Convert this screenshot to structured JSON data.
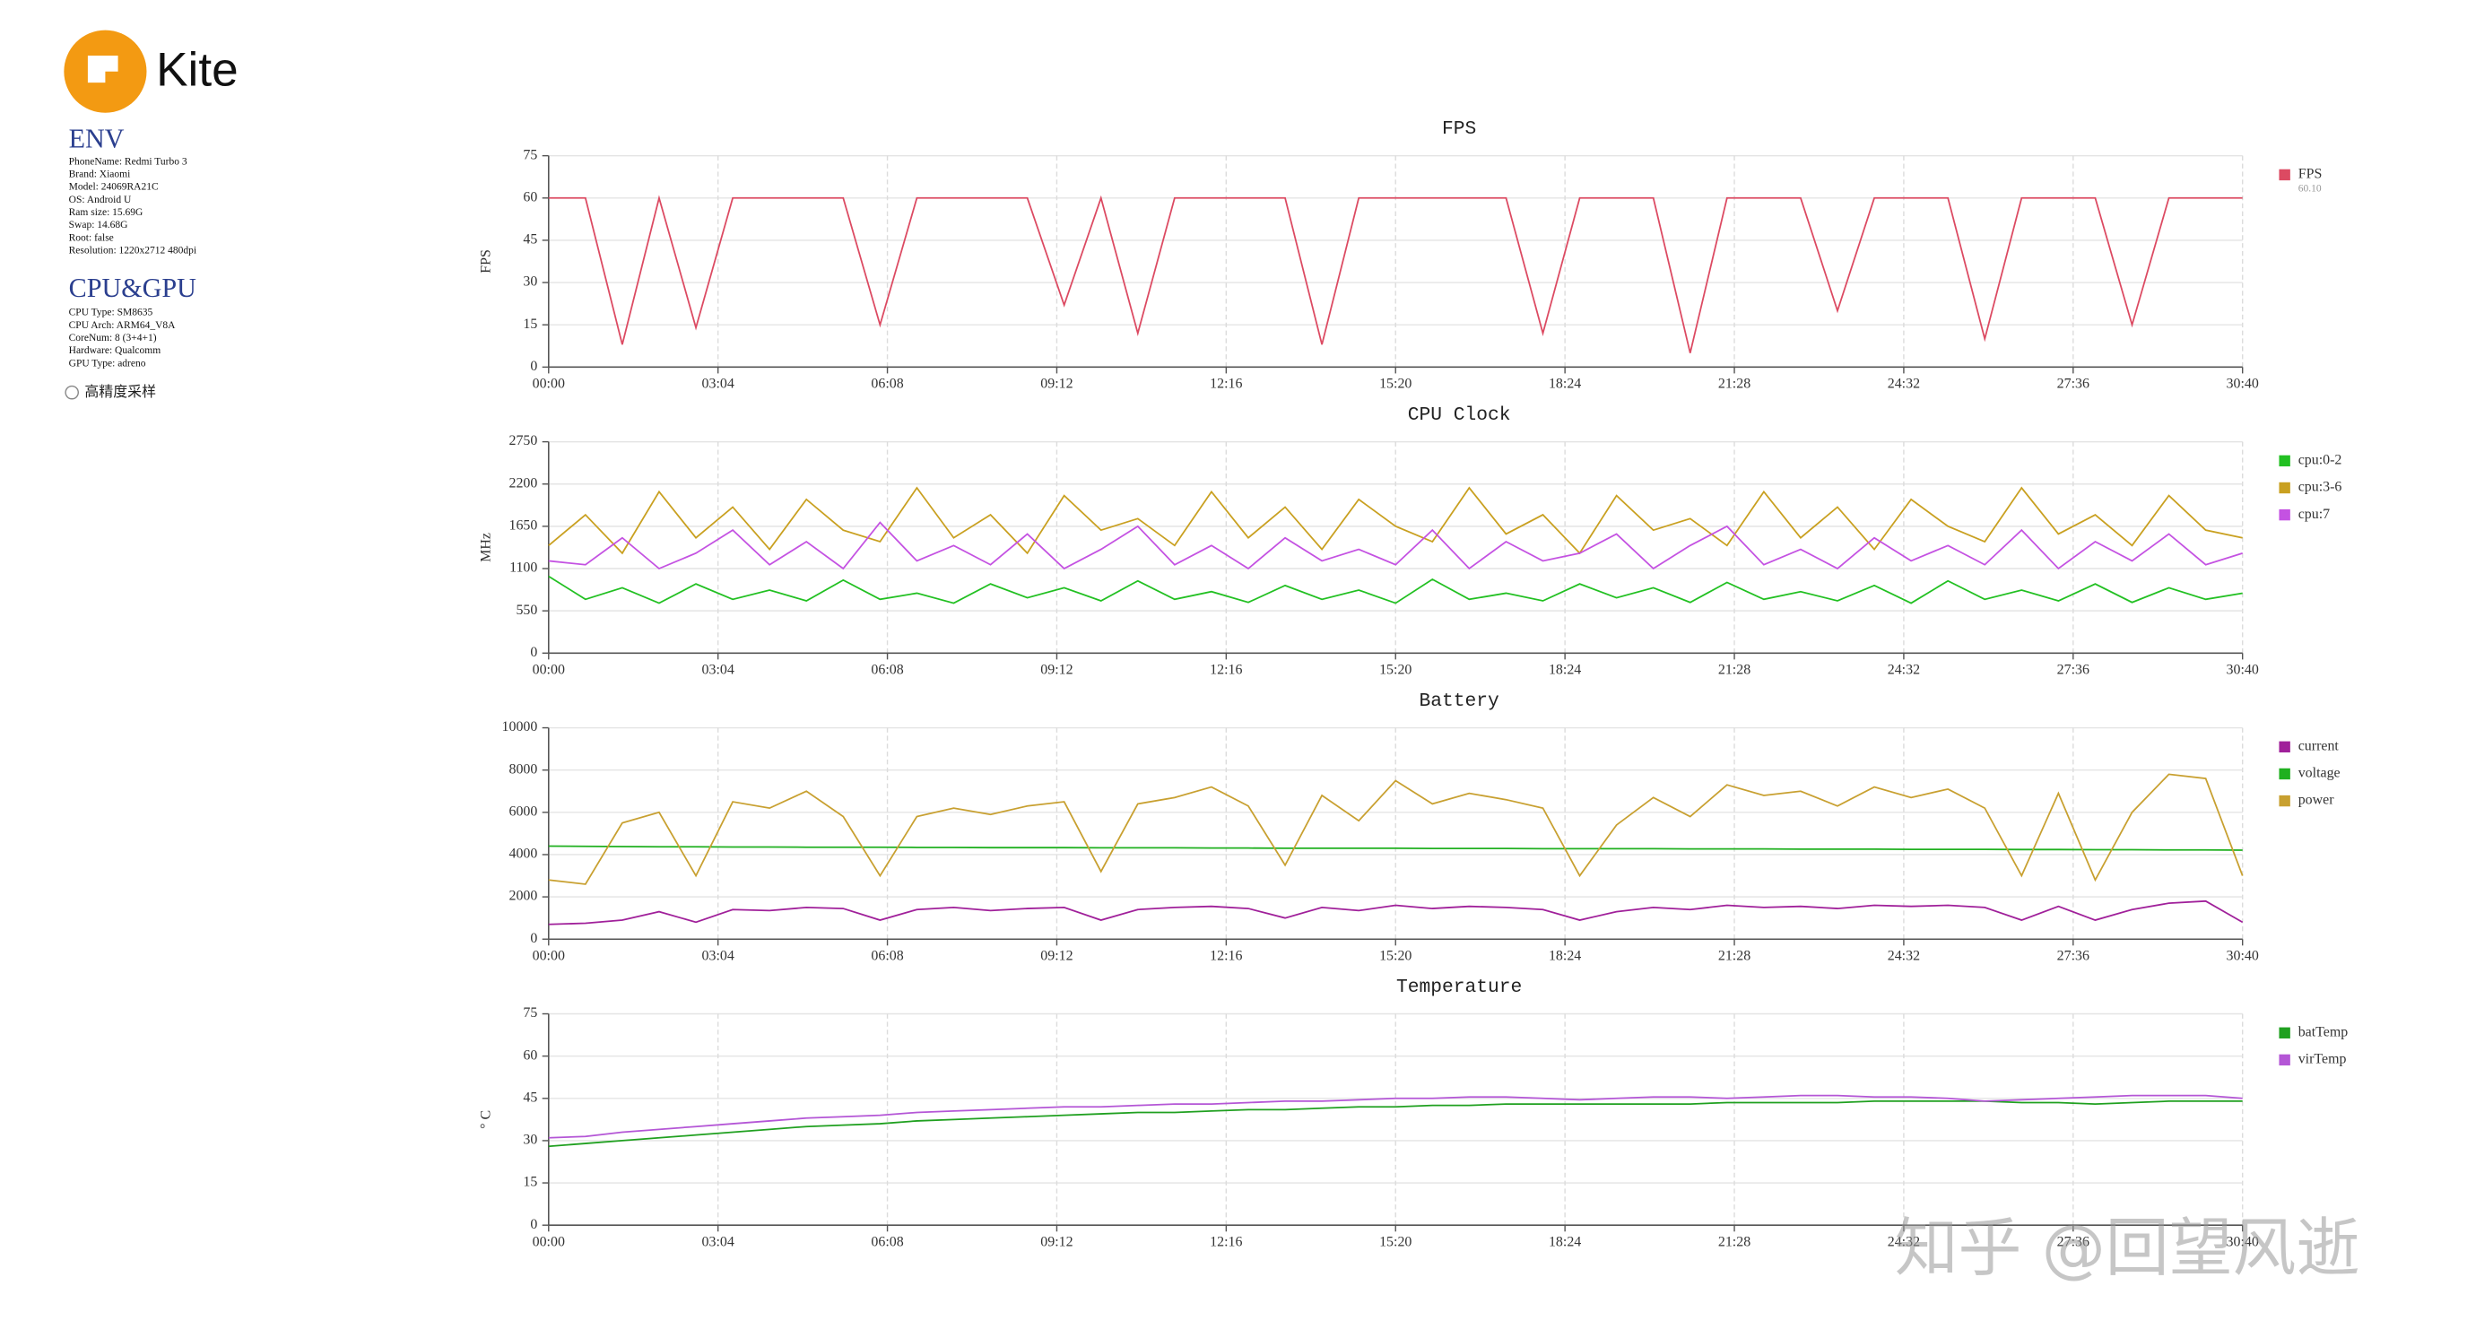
{
  "brand": "Kite",
  "env": {
    "heading": "ENV",
    "lines": [
      "PhoneName: Redmi Turbo 3",
      "Brand: Xiaomi",
      "Model: 24069RA21C",
      "OS: Android U",
      "Ram size: 15.69G",
      "Swap: 14.68G",
      "Root: false",
      "Resolution: 1220x2712 480dpi"
    ]
  },
  "cpu_gpu": {
    "heading": "CPU&GPU",
    "lines": [
      "CPU Type: SM8635",
      "CPU Arch: ARM64_V8A",
      "CoreNum: 8 (3+4+1)",
      "Hardware: Qualcomm",
      "GPU Type: adreno"
    ]
  },
  "option": "高精度采样",
  "watermark": "知乎 @回望风逝",
  "chart_data": [
    {
      "type": "line",
      "title": "FPS",
      "ylabel": "FPS",
      "grid": true,
      "legend": "right",
      "x": [
        0,
        40,
        80,
        120,
        160,
        200,
        240,
        280,
        320,
        360,
        400,
        440,
        480,
        520,
        560,
        600,
        640,
        680,
        720,
        760,
        800,
        840,
        880,
        920,
        960,
        1000,
        1040,
        1080,
        1120,
        1160,
        1200,
        1240,
        1280,
        1320,
        1360,
        1400,
        1440,
        1480,
        1520,
        1560,
        1600,
        1640,
        1680,
        1720,
        1760,
        1800,
        1840
      ],
      "xlim": [
        0,
        1840
      ],
      "xticks": [
        {
          "value": 0,
          "label": "00:00"
        },
        {
          "value": 184,
          "label": "03:04"
        },
        {
          "value": 368,
          "label": "06:08"
        },
        {
          "value": 552,
          "label": "09:12"
        },
        {
          "value": 736,
          "label": "12:16"
        },
        {
          "value": 920,
          "label": "15:20"
        },
        {
          "value": 1104,
          "label": "18:24"
        },
        {
          "value": 1288,
          "label": "21:28"
        },
        {
          "value": 1472,
          "label": "24:32"
        },
        {
          "value": 1656,
          "label": "27:36"
        },
        {
          "value": 1840,
          "label": "30:40"
        }
      ],
      "ylim": [
        0,
        75
      ],
      "yticks": [
        0,
        15,
        30,
        45,
        60,
        75
      ],
      "series": [
        {
          "name": "FPS",
          "note": "60.10",
          "color": "#dc4a62",
          "values": [
            60,
            60,
            8,
            60,
            14,
            60,
            60,
            60,
            60,
            15,
            60,
            60,
            60,
            60,
            22,
            60,
            12,
            60,
            60,
            60,
            60,
            8,
            60,
            60,
            60,
            60,
            60,
            12,
            60,
            60,
            60,
            5,
            60,
            60,
            60,
            20,
            60,
            60,
            60,
            10,
            60,
            60,
            60,
            15,
            60,
            60,
            60
          ]
        }
      ]
    },
    {
      "type": "line",
      "title": "CPU Clock",
      "ylabel": "MHz",
      "grid": true,
      "legend": "right",
      "x": [
        0,
        40,
        80,
        120,
        160,
        200,
        240,
        280,
        320,
        360,
        400,
        440,
        480,
        520,
        560,
        600,
        640,
        680,
        720,
        760,
        800,
        840,
        880,
        920,
        960,
        1000,
        1040,
        1080,
        1120,
        1160,
        1200,
        1240,
        1280,
        1320,
        1360,
        1400,
        1440,
        1480,
        1520,
        1560,
        1600,
        1640,
        1680,
        1720,
        1760,
        1800,
        1840
      ],
      "xlim": [
        0,
        1840
      ],
      "xticks": [
        {
          "value": 0,
          "label": "00:00"
        },
        {
          "value": 184,
          "label": "03:04"
        },
        {
          "value": 368,
          "label": "06:08"
        },
        {
          "value": 552,
          "label": "09:12"
        },
        {
          "value": 736,
          "label": "12:16"
        },
        {
          "value": 920,
          "label": "15:20"
        },
        {
          "value": 1104,
          "label": "18:24"
        },
        {
          "value": 1288,
          "label": "21:28"
        },
        {
          "value": 1472,
          "label": "24:32"
        },
        {
          "value": 1656,
          "label": "27:36"
        },
        {
          "value": 1840,
          "label": "30:40"
        }
      ],
      "ylim": [
        0,
        2750
      ],
      "yticks": [
        0,
        550,
        1100,
        1650,
        2200,
        2750
      ],
      "series": [
        {
          "name": "cpu:0-2",
          "color": "#22c022",
          "values": [
            1000,
            700,
            850,
            650,
            900,
            700,
            820,
            680,
            950,
            700,
            780,
            650,
            900,
            720,
            850,
            680,
            940,
            700,
            800,
            660,
            880,
            700,
            820,
            650,
            960,
            700,
            780,
            680,
            900,
            720,
            850,
            660,
            920,
            700,
            800,
            680,
            880,
            650,
            940,
            700,
            820,
            680,
            900,
            660,
            850,
            700,
            780
          ]
        },
        {
          "name": "cpu:3-6",
          "color": "#c9a020",
          "values": [
            1400,
            1800,
            1300,
            2100,
            1500,
            1900,
            1350,
            2000,
            1600,
            1450,
            2150,
            1500,
            1800,
            1300,
            2050,
            1600,
            1750,
            1400,
            2100,
            1500,
            1900,
            1350,
            2000,
            1650,
            1450,
            2150,
            1550,
            1800,
            1300,
            2050,
            1600,
            1750,
            1400,
            2100,
            1500,
            1900,
            1350,
            2000,
            1650,
            1450,
            2150,
            1550,
            1800,
            1400,
            2050,
            1600,
            1500
          ]
        },
        {
          "name": "cpu:7",
          "color": "#c452e2",
          "values": [
            1200,
            1150,
            1500,
            1100,
            1300,
            1600,
            1150,
            1450,
            1100,
            1700,
            1200,
            1400,
            1150,
            1550,
            1100,
            1350,
            1650,
            1150,
            1400,
            1100,
            1500,
            1200,
            1350,
            1150,
            1600,
            1100,
            1450,
            1200,
            1300,
            1550,
            1100,
            1400,
            1650,
            1150,
            1350,
            1100,
            1500,
            1200,
            1400,
            1150,
            1600,
            1100,
            1450,
            1200,
            1550,
            1150,
            1300
          ]
        }
      ]
    },
    {
      "type": "line",
      "title": "Battery",
      "grid": true,
      "legend": "right",
      "x": [
        0,
        40,
        80,
        120,
        160,
        200,
        240,
        280,
        320,
        360,
        400,
        440,
        480,
        520,
        560,
        600,
        640,
        680,
        720,
        760,
        800,
        840,
        880,
        920,
        960,
        1000,
        1040,
        1080,
        1120,
        1160,
        1200,
        1240,
        1280,
        1320,
        1360,
        1400,
        1440,
        1480,
        1520,
        1560,
        1600,
        1640,
        1680,
        1720,
        1760,
        1800,
        1840
      ],
      "xlim": [
        0,
        1840
      ],
      "xticks": [
        {
          "value": 0,
          "label": "00:00"
        },
        {
          "value": 184,
          "label": "03:04"
        },
        {
          "value": 368,
          "label": "06:08"
        },
        {
          "value": 552,
          "label": "09:12"
        },
        {
          "value": 736,
          "label": "12:16"
        },
        {
          "value": 920,
          "label": "15:20"
        },
        {
          "value": 1104,
          "label": "18:24"
        },
        {
          "value": 1288,
          "label": "21:28"
        },
        {
          "value": 1472,
          "label": "24:32"
        },
        {
          "value": 1656,
          "label": "27:36"
        },
        {
          "value": 1840,
          "label": "30:40"
        }
      ],
      "ylim": [
        0,
        10000
      ],
      "yticks": [
        0,
        2000,
        4000,
        6000,
        8000,
        10000
      ],
      "series": [
        {
          "name": "current",
          "color": "#a0209a",
          "values": [
            700,
            750,
            900,
            1300,
            800,
            1400,
            1350,
            1500,
            1450,
            900,
            1400,
            1500,
            1350,
            1450,
            1500,
            900,
            1400,
            1500,
            1550,
            1450,
            1000,
            1500,
            1350,
            1600,
            1450,
            1550,
            1500,
            1400,
            900,
            1300,
            1500,
            1400,
            1600,
            1500,
            1550,
            1450,
            1600,
            1550,
            1600,
            1500,
            900,
            1550,
            900,
            1400,
            1700,
            1800,
            800
          ]
        },
        {
          "name": "voltage",
          "color": "#20b020",
          "values": [
            4400,
            4390,
            4380,
            4370,
            4370,
            4360,
            4360,
            4350,
            4350,
            4350,
            4340,
            4340,
            4330,
            4330,
            4330,
            4320,
            4320,
            4320,
            4310,
            4310,
            4300,
            4300,
            4300,
            4300,
            4290,
            4290,
            4290,
            4280,
            4280,
            4280,
            4280,
            4270,
            4270,
            4270,
            4260,
            4260,
            4260,
            4250,
            4250,
            4250,
            4240,
            4240,
            4230,
            4230,
            4220,
            4220,
            4210
          ]
        },
        {
          "name": "power",
          "color": "#c8a030",
          "values": [
            2800,
            2600,
            5500,
            6000,
            3000,
            6500,
            6200,
            7000,
            5800,
            3000,
            5800,
            6200,
            5900,
            6300,
            6500,
            3200,
            6400,
            6700,
            7200,
            6300,
            3500,
            6800,
            5600,
            7500,
            6400,
            6900,
            6600,
            6200,
            3000,
            5400,
            6700,
            5800,
            7300,
            6800,
            7000,
            6300,
            7200,
            6700,
            7100,
            6200,
            3000,
            6900,
            2800,
            6000,
            7800,
            7600,
            3000
          ]
        }
      ]
    },
    {
      "type": "line",
      "title": "Temperature",
      "ylabel": "° C",
      "grid": true,
      "legend": "right",
      "x": [
        0,
        40,
        80,
        120,
        160,
        200,
        240,
        280,
        320,
        360,
        400,
        440,
        480,
        520,
        560,
        600,
        640,
        680,
        720,
        760,
        800,
        840,
        880,
        920,
        960,
        1000,
        1040,
        1080,
        1120,
        1160,
        1200,
        1240,
        1280,
        1320,
        1360,
        1400,
        1440,
        1480,
        1520,
        1560,
        1600,
        1640,
        1680,
        1720,
        1760,
        1800,
        1840
      ],
      "xlim": [
        0,
        1840
      ],
      "xticks": [
        {
          "value": 0,
          "label": "00:00"
        },
        {
          "value": 184,
          "label": "03:04"
        },
        {
          "value": 368,
          "label": "06:08"
        },
        {
          "value": 552,
          "label": "09:12"
        },
        {
          "value": 736,
          "label": "12:16"
        },
        {
          "value": 920,
          "label": "15:20"
        },
        {
          "value": 1104,
          "label": "18:24"
        },
        {
          "value": 1288,
          "label": "21:28"
        },
        {
          "value": 1472,
          "label": "24:32"
        },
        {
          "value": 1656,
          "label": "27:36"
        },
        {
          "value": 1840,
          "label": "30:40"
        }
      ],
      "ylim": [
        0,
        75
      ],
      "yticks": [
        0,
        15,
        30,
        45,
        60,
        75
      ],
      "series": [
        {
          "name": "batTemp",
          "color": "#20a020",
          "values": [
            28,
            29,
            30,
            31,
            32,
            33,
            34,
            35,
            35.5,
            36,
            37,
            37.5,
            38,
            38.5,
            39,
            39.5,
            40,
            40,
            40.5,
            41,
            41,
            41.5,
            42,
            42,
            42.5,
            42.5,
            43,
            43,
            43,
            43,
            43,
            43,
            43.5,
            43.5,
            43.5,
            43.5,
            44,
            44,
            44,
            44,
            43.5,
            43.5,
            43,
            43.5,
            44,
            44,
            44
          ]
        },
        {
          "name": "virTemp",
          "color": "#b456d6",
          "values": [
            31,
            31.5,
            33,
            34,
            35,
            36,
            37,
            38,
            38.5,
            39,
            40,
            40.5,
            41,
            41.5,
            42,
            42,
            42.5,
            43,
            43,
            43.5,
            44,
            44,
            44.5,
            45,
            45,
            45.5,
            45.5,
            45,
            44.5,
            45,
            45.5,
            45.5,
            45,
            45.5,
            46,
            46,
            45.5,
            45.5,
            45,
            44,
            44.5,
            45,
            45.5,
            46,
            46,
            46,
            45
          ]
        }
      ]
    }
  ]
}
